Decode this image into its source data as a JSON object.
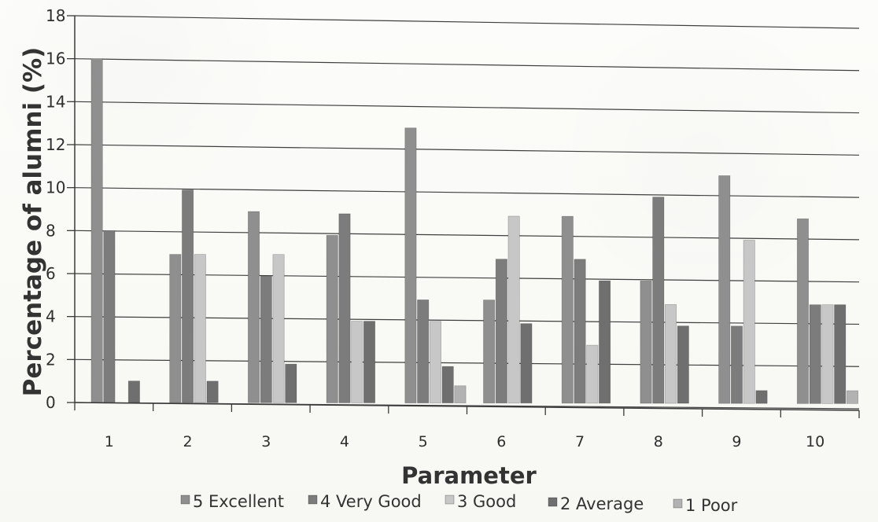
{
  "chart_data": {
    "type": "bar",
    "title": "",
    "xlabel": "Parameter",
    "ylabel": "Percentage of alumni (%)",
    "categories": [
      "1",
      "2",
      "3",
      "4",
      "5",
      "6",
      "7",
      "8",
      "9",
      "10"
    ],
    "ylim": [
      0,
      18
    ],
    "y_ticks": [
      0,
      2,
      4,
      6,
      8,
      10,
      12,
      14,
      16,
      18
    ],
    "grid": true,
    "legend_position": "bottom",
    "series": [
      {
        "name": "5 Excellent",
        "values": [
          16,
          6.9,
          8.9,
          7.8,
          12.8,
          4.8,
          8.7,
          5.7,
          10.6,
          8.6
        ],
        "color": "#8f8f8f"
      },
      {
        "name": "4 Very Good",
        "values": [
          8.0,
          9.9,
          5.9,
          8.8,
          4.8,
          6.7,
          6.7,
          9.6,
          3.6,
          4.6
        ],
        "color": "#7c7c7c"
      },
      {
        "name": "3 Good",
        "values": [
          0,
          6.9,
          6.9,
          3.8,
          3.8,
          8.7,
          2.7,
          4.6,
          7.6,
          4.6
        ],
        "color": "#c7c7c7"
      },
      {
        "name": "2 Average",
        "values": [
          1.0,
          1.0,
          1.8,
          3.8,
          1.7,
          3.7,
          5.7,
          3.6,
          0.6,
          4.6
        ],
        "color": "#6f6f6f"
      },
      {
        "name": "1 Poor",
        "values": [
          0,
          0,
          0,
          0,
          0.8,
          0,
          0,
          0,
          0,
          0.6
        ],
        "color": "#b2b2b2"
      }
    ]
  }
}
